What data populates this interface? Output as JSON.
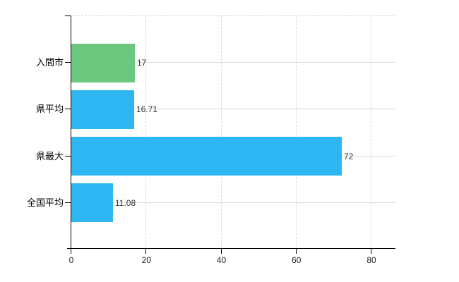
{
  "chart_data": {
    "type": "bar",
    "orientation": "horizontal",
    "title": "",
    "xlabel": "",
    "ylabel": "",
    "categories": [
      "入間市",
      "県平均",
      "県最大",
      "全国平均"
    ],
    "values": [
      17,
      16.71,
      72,
      11.08
    ],
    "value_labels": [
      "17",
      "16.71",
      "72",
      "11.08"
    ],
    "bar_colors": [
      "#6cc87e",
      "#2db6f1",
      "#2db6f1",
      "#2db6f1"
    ],
    "x_ticks": [
      0,
      20,
      40,
      60,
      80
    ],
    "x_tick_labels": [
      "0",
      "20",
      "40",
      "60",
      "80"
    ],
    "xlim": [
      0,
      86.4
    ],
    "grid": {
      "vertical": "dashed at each x tick",
      "horizontal": "solid at each category center",
      "top_border": "dashed"
    },
    "legend": "none"
  },
  "colors": {
    "background": "#ffffff",
    "axis": "#000000",
    "grid_vertical": "#d6d6d6",
    "grid_horizontal": "#d9d9d9",
    "top_border": "#d0d0d0",
    "bar_green": "#6cc87e",
    "bar_blue": "#2db6f1",
    "value_text": "#333333",
    "tick_text": "#222222"
  }
}
